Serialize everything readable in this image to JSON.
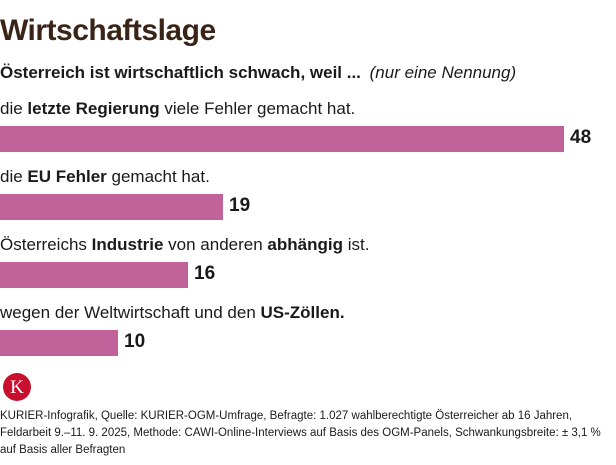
{
  "header": {
    "title": "Wirtschaftslage",
    "question": "Österreich ist wirtschaftlich schwach, weil ...",
    "note": "(nur eine Nennung)"
  },
  "chart_data": {
    "type": "bar",
    "orientation": "horizontal",
    "bar_color": "#c1639a",
    "xlim": [
      0,
      48
    ],
    "categories": [
      "die letzte Regierung viele Fehler gemacht hat.",
      "die EU Fehler gemacht hat.",
      "Österreichs Industrie von anderen abhängig ist.",
      "wegen der Weltwirtschaft und den US-Zöllen."
    ],
    "label_parts": [
      [
        {
          "t": "die ",
          "b": false
        },
        {
          "t": "letzte Regierung",
          "b": true
        },
        {
          "t": " viele Fehler gemacht hat.",
          "b": false
        }
      ],
      [
        {
          "t": "die ",
          "b": false
        },
        {
          "t": "EU Fehler",
          "b": true
        },
        {
          "t": " gemacht hat.",
          "b": false
        }
      ],
      [
        {
          "t": "Österreichs ",
          "b": false
        },
        {
          "t": "Industrie",
          "b": true
        },
        {
          "t": " von anderen ",
          "b": false
        },
        {
          "t": "abhängig",
          "b": true
        },
        {
          "t": " ist.",
          "b": false
        }
      ],
      [
        {
          "t": "wegen der Weltwirtschaft und den ",
          "b": false
        },
        {
          "t": "US-Zöllen.",
          "b": true
        }
      ]
    ],
    "values": [
      48,
      19,
      16,
      10
    ]
  },
  "footer": {
    "logo_letter": "K",
    "source": "KURIER-Infografik, Quelle: KURIER-OGM-Umfrage, Befragte: 1.027 wahlberechtigte Österreicher ab 16 Jahren, Feldarbeit 9.–11. 9. 2025,  Methode: CAWI-Online-Interviews auf Basis des OGM-Panels, Schwankungsbreite: ± 3,1 % auf Basis aller Befragten"
  }
}
